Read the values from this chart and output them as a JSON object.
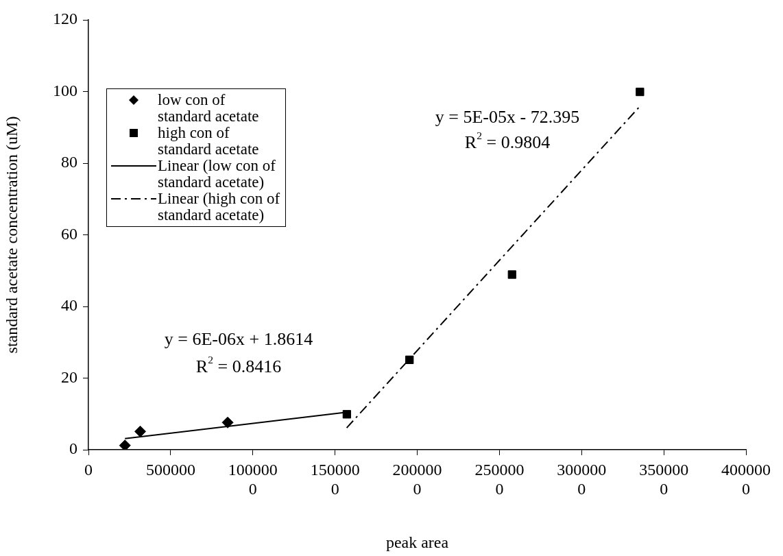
{
  "chart_data": {
    "type": "scatter",
    "xlabel": "peak area",
    "ylabel": "standard acetate concentration (uM)",
    "xlim": [
      0,
      4000000
    ],
    "xticks": [
      0,
      500000,
      1000000,
      1500000,
      2000000,
      2500000,
      3000000,
      3500000,
      4000000
    ],
    "ylim": [
      0,
      120
    ],
    "yticks": [
      0,
      20,
      40,
      60,
      80,
      100,
      120
    ],
    "grid": false,
    "legend": "top left",
    "series": [
      {
        "name": "low con of standard acetate",
        "marker": "diamond",
        "color": "#000000",
        "x": [
          222000,
          315000,
          847000
        ],
        "values": [
          1.2,
          5.1,
          7.6
        ]
      },
      {
        "name": "high con of standard acetate",
        "marker": "square",
        "color": "#000000",
        "x": [
          1572000,
          1953000,
          2577000,
          3355000
        ],
        "values": [
          9.9,
          25.1,
          48.9,
          99.9
        ]
      },
      {
        "name": "Linear (low con of standard acetate)",
        "type": "line",
        "marker": "none",
        "line_style": "solid",
        "color": "#000000",
        "x": [
          222000,
          1572000
        ],
        "values": [
          3.1,
          10.5
        ]
      },
      {
        "name": "Linear (high con of standard acetate)",
        "type": "line",
        "marker": "none",
        "line_style": "dashed",
        "color": "#000000",
        "x": [
          1571000,
          3355000
        ],
        "values": [
          6.1,
          95.9
        ]
      }
    ],
    "annotations": [
      "y = 6E-06x + 1.8614",
      "R$^{2}$ = 0.8416",
      "y = 5E-05x - 72.395",
      "R$^{2}$ = 0.9804"
    ]
  }
}
